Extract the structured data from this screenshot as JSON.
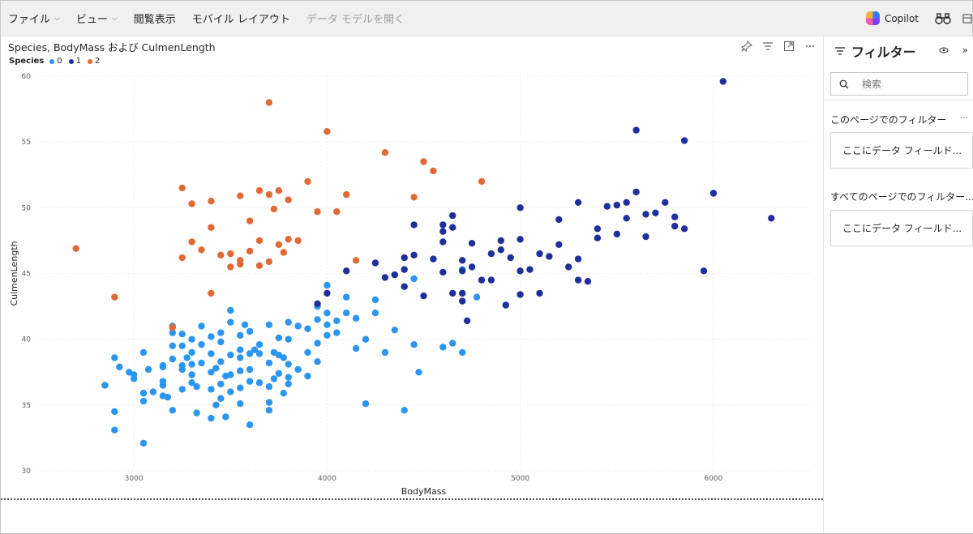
{
  "menu": {
    "items": [
      {
        "label": "ファイル",
        "dropdown": true,
        "enabled": true
      },
      {
        "label": "ビュー",
        "dropdown": true,
        "enabled": true
      },
      {
        "label": "閲覧表示",
        "dropdown": false,
        "enabled": true
      },
      {
        "label": "モバイル レイアウト",
        "dropdown": false,
        "enabled": true
      },
      {
        "label": "データ モデルを開く",
        "dropdown": false,
        "enabled": false
      }
    ],
    "copilot_label": "Copilot"
  },
  "visual": {
    "title": "Species, BodyMass および CulmenLength",
    "legend_title": "Species",
    "header_icons": [
      "pin-icon",
      "filter-lines-icon",
      "focus-mode-icon",
      "more-options-icon"
    ]
  },
  "filter_pane": {
    "title": "フィルター",
    "search_placeholder": "検索",
    "page_section_label": "このページでのフィルター",
    "page_well_text": "ここにデータ フィールド...",
    "all_section_label": "すべてのページでのフィルター...",
    "all_well_text": "ここにデータ フィールド..."
  },
  "colors": {
    "species_0": "#2b95f0",
    "species_1": "#1f2f9b",
    "species_2": "#e06a35",
    "gridline": "#e3e3e3"
  },
  "chart_data": {
    "type": "scatter",
    "title": "Species, BodyMass および CulmenLength",
    "xlabel": "BodyMass",
    "ylabel": "CulmenLength",
    "xlim": [
      2500,
      6500
    ],
    "ylim": [
      30,
      60
    ],
    "xticks": [
      3000,
      4000,
      5000,
      6000
    ],
    "yticks": [
      30,
      35,
      40,
      45,
      50,
      55,
      60
    ],
    "grid": true,
    "legend_position": "top-left",
    "series": [
      {
        "name": "0",
        "points": [
          [
            2850,
            36.5
          ],
          [
            2900,
            33.1
          ],
          [
            2900,
            34.5
          ],
          [
            2925,
            37.9
          ],
          [
            2900,
            38.6
          ],
          [
            2975,
            37.5
          ],
          [
            3000,
            37.0
          ],
          [
            3000,
            37.3
          ],
          [
            3050,
            35.9
          ],
          [
            3050,
            32.1
          ],
          [
            3050,
            35.3
          ],
          [
            3050,
            39.0
          ],
          [
            3075,
            37.7
          ],
          [
            3100,
            36.0
          ],
          [
            3150,
            36.5
          ],
          [
            3150,
            38.0
          ],
          [
            3150,
            35.7
          ],
          [
            3150,
            36.8
          ],
          [
            3150,
            37.9
          ],
          [
            3175,
            35.6
          ],
          [
            3200,
            34.6
          ],
          [
            3200,
            38.5
          ],
          [
            3200,
            39.5
          ],
          [
            3200,
            40.5
          ],
          [
            3200,
            41.0
          ],
          [
            3250,
            36.2
          ],
          [
            3250,
            37.7
          ],
          [
            3250,
            38.0
          ],
          [
            3250,
            39.5
          ],
          [
            3250,
            40.4
          ],
          [
            3275,
            38.6
          ],
          [
            3300,
            37.3
          ],
          [
            3300,
            38.1
          ],
          [
            3300,
            39.0
          ],
          [
            3300,
            36.7
          ],
          [
            3300,
            40.0
          ],
          [
            3325,
            36.4
          ],
          [
            3325,
            34.4
          ],
          [
            3350,
            38.2
          ],
          [
            3350,
            39.6
          ],
          [
            3350,
            41.0
          ],
          [
            3400,
            36.2
          ],
          [
            3400,
            37.5
          ],
          [
            3400,
            38.9
          ],
          [
            3400,
            34.0
          ],
          [
            3400,
            40.2
          ],
          [
            3425,
            35.0
          ],
          [
            3425,
            37.8
          ],
          [
            3450,
            35.5
          ],
          [
            3450,
            36.6
          ],
          [
            3450,
            38.3
          ],
          [
            3450,
            39.8
          ],
          [
            3450,
            40.5
          ],
          [
            3475,
            37.2
          ],
          [
            3475,
            34.1
          ],
          [
            3500,
            36.0
          ],
          [
            3500,
            37.3
          ],
          [
            3500,
            38.8
          ],
          [
            3500,
            41.3
          ],
          [
            3500,
            42.2
          ],
          [
            3550,
            35.1
          ],
          [
            3550,
            36.3
          ],
          [
            3550,
            37.6
          ],
          [
            3550,
            38.6
          ],
          [
            3550,
            39.2
          ],
          [
            3550,
            40.3
          ],
          [
            3575,
            41.1
          ],
          [
            3600,
            33.5
          ],
          [
            3600,
            36.8
          ],
          [
            3600,
            37.7
          ],
          [
            3600,
            38.9
          ],
          [
            3600,
            40.6
          ],
          [
            3625,
            39.2
          ],
          [
            3650,
            36.7
          ],
          [
            3650,
            38.9
          ],
          [
            3650,
            39.6
          ],
          [
            3700,
            35.2
          ],
          [
            3700,
            36.4
          ],
          [
            3700,
            38.2
          ],
          [
            3700,
            41.1
          ],
          [
            3700,
            34.6
          ],
          [
            3725,
            39.0
          ],
          [
            3725,
            37.0
          ],
          [
            3750,
            37.4
          ],
          [
            3750,
            38.8
          ],
          [
            3750,
            40.1
          ],
          [
            3775,
            35.9
          ],
          [
            3775,
            38.6
          ],
          [
            3800,
            37.1
          ],
          [
            3800,
            38.1
          ],
          [
            3800,
            40.0
          ],
          [
            3800,
            41.3
          ],
          [
            3800,
            36.6
          ],
          [
            3850,
            37.7
          ],
          [
            3850,
            41.0
          ],
          [
            3900,
            37.2
          ],
          [
            3900,
            39.0
          ],
          [
            3900,
            40.8
          ],
          [
            3950,
            38.3
          ],
          [
            3950,
            39.7
          ],
          [
            3950,
            41.5
          ],
          [
            3950,
            42.5
          ],
          [
            4000,
            40.3
          ],
          [
            4000,
            41.1
          ],
          [
            4000,
            42.0
          ],
          [
            4000,
            44.1
          ],
          [
            4050,
            40.5
          ],
          [
            4050,
            41.4
          ],
          [
            4100,
            42.0
          ],
          [
            4100,
            43.2
          ],
          [
            4150,
            39.3
          ],
          [
            4150,
            41.6
          ],
          [
            4200,
            35.1
          ],
          [
            4200,
            40.0
          ],
          [
            4250,
            42.0
          ],
          [
            4250,
            43.0
          ],
          [
            4300,
            39.0
          ],
          [
            4350,
            40.7
          ],
          [
            4400,
            34.6
          ],
          [
            4450,
            39.6
          ],
          [
            4450,
            44.6
          ],
          [
            4475,
            37.5
          ],
          [
            4600,
            39.4
          ],
          [
            4650,
            39.7
          ],
          [
            4700,
            39.0
          ],
          [
            4700,
            45.3
          ],
          [
            4775,
            43.2
          ]
        ]
      },
      {
        "name": "1",
        "points": [
          [
            3950,
            42.7
          ],
          [
            4000,
            43.5
          ],
          [
            4100,
            45.2
          ],
          [
            4250,
            45.8
          ],
          [
            4300,
            44.7
          ],
          [
            4350,
            44.9
          ],
          [
            4400,
            46.2
          ],
          [
            4400,
            45.3
          ],
          [
            4400,
            44.0
          ],
          [
            4450,
            46.4
          ],
          [
            4450,
            48.7
          ],
          [
            4500,
            43.3
          ],
          [
            4550,
            46.1
          ],
          [
            4600,
            45.1
          ],
          [
            4600,
            47.4
          ],
          [
            4600,
            48.2
          ],
          [
            4600,
            48.7
          ],
          [
            4650,
            43.5
          ],
          [
            4650,
            48.5
          ],
          [
            4650,
            49.4
          ],
          [
            4700,
            42.9
          ],
          [
            4700,
            43.5
          ],
          [
            4700,
            45.2
          ],
          [
            4700,
            46.0
          ],
          [
            4725,
            41.4
          ],
          [
            4750,
            45.5
          ],
          [
            4750,
            47.3
          ],
          [
            4800,
            44.5
          ],
          [
            4850,
            46.5
          ],
          [
            4850,
            44.5
          ],
          [
            4900,
            46.8
          ],
          [
            4900,
            47.5
          ],
          [
            4925,
            42.6
          ],
          [
            4950,
            46.2
          ],
          [
            5000,
            43.4
          ],
          [
            5000,
            45.2
          ],
          [
            5000,
            47.6
          ],
          [
            5000,
            50.0
          ],
          [
            5050,
            45.3
          ],
          [
            5100,
            43.5
          ],
          [
            5100,
            46.5
          ],
          [
            5150,
            46.3
          ],
          [
            5200,
            47.2
          ],
          [
            5200,
            49.1
          ],
          [
            5250,
            45.5
          ],
          [
            5300,
            44.5
          ],
          [
            5300,
            46.1
          ],
          [
            5300,
            50.4
          ],
          [
            5350,
            44.4
          ],
          [
            5400,
            47.7
          ],
          [
            5400,
            48.4
          ],
          [
            5450,
            50.1
          ],
          [
            5500,
            48.0
          ],
          [
            5500,
            50.2
          ],
          [
            5550,
            49.2
          ],
          [
            5550,
            50.4
          ],
          [
            5600,
            51.2
          ],
          [
            5600,
            55.9
          ],
          [
            5650,
            47.8
          ],
          [
            5650,
            49.5
          ],
          [
            5700,
            49.6
          ],
          [
            5750,
            50.4
          ],
          [
            5800,
            48.6
          ],
          [
            5800,
            49.3
          ],
          [
            5850,
            48.4
          ],
          [
            5850,
            55.1
          ],
          [
            5950,
            45.2
          ],
          [
            6000,
            51.1
          ],
          [
            6050,
            59.6
          ],
          [
            6300,
            49.2
          ]
        ]
      },
      {
        "name": "2",
        "points": [
          [
            2700,
            46.9
          ],
          [
            2900,
            43.2
          ],
          [
            3200,
            40.9
          ],
          [
            3250,
            46.2
          ],
          [
            3250,
            51.5
          ],
          [
            3300,
            47.4
          ],
          [
            3300,
            50.3
          ],
          [
            3350,
            46.8
          ],
          [
            3400,
            43.5
          ],
          [
            3400,
            48.5
          ],
          [
            3400,
            50.5
          ],
          [
            3450,
            46.4
          ],
          [
            3500,
            45.5
          ],
          [
            3500,
            46.5
          ],
          [
            3550,
            45.7
          ],
          [
            3550,
            46.0
          ],
          [
            3550,
            50.9
          ],
          [
            3600,
            46.7
          ],
          [
            3600,
            49.0
          ],
          [
            3650,
            45.6
          ],
          [
            3650,
            47.5
          ],
          [
            3650,
            51.3
          ],
          [
            3700,
            45.9
          ],
          [
            3700,
            51.0
          ],
          [
            3700,
            58.0
          ],
          [
            3725,
            49.9
          ],
          [
            3750,
            47.2
          ],
          [
            3750,
            51.3
          ],
          [
            3775,
            46.6
          ],
          [
            3800,
            47.6
          ],
          [
            3800,
            50.6
          ],
          [
            3850,
            47.5
          ],
          [
            3900,
            52.0
          ],
          [
            3950,
            49.7
          ],
          [
            4000,
            55.8
          ],
          [
            4050,
            49.7
          ],
          [
            4100,
            51.0
          ],
          [
            4150,
            46.0
          ],
          [
            4300,
            54.2
          ],
          [
            4450,
            50.8
          ],
          [
            4500,
            53.5
          ],
          [
            4550,
            52.8
          ],
          [
            4800,
            52.0
          ]
        ]
      }
    ]
  }
}
